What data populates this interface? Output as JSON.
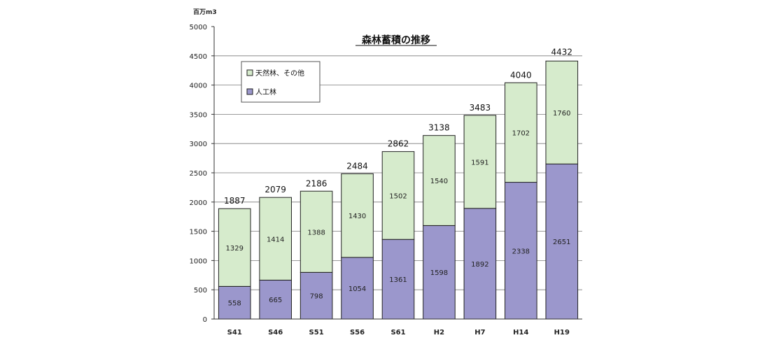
{
  "chart_data": {
    "type": "bar",
    "stacked": true,
    "title": "森林蓄積の推移",
    "ylabel": "百万m3",
    "xlabel": "",
    "ylim": [
      0,
      5000
    ],
    "yticks": [
      0,
      500,
      1000,
      1500,
      2000,
      2500,
      3000,
      3500,
      4000,
      4500,
      5000
    ],
    "categories": [
      "S41",
      "S46",
      "S51",
      "S56",
      "S61",
      "H2",
      "H7",
      "H14",
      "H19"
    ],
    "series": [
      {
        "name": "人工林",
        "color": "#9b97cc",
        "values": [
          558,
          665,
          798,
          1054,
          1361,
          1598,
          1892,
          2338,
          2651
        ],
        "labels": [
          "558",
          "665",
          "798",
          "1054",
          "1361",
          "1598",
          "1892",
          "2338",
          "2651"
        ]
      },
      {
        "name": "天然林、その他",
        "color": "#d6ebcc",
        "values": [
          1329,
          1414,
          1388,
          1430,
          1502,
          1540,
          1591,
          1702,
          1760
        ],
        "labels": [
          "1329",
          "1414",
          "1388",
          "1430",
          "1502",
          "1540",
          "1591",
          "1702",
          "1760"
        ]
      }
    ],
    "totals": [
      1887,
      2079,
      2186,
      2484,
      2862,
      3138,
      3483,
      4040,
      4432
    ],
    "grid": true,
    "legend_position": "top-left"
  }
}
